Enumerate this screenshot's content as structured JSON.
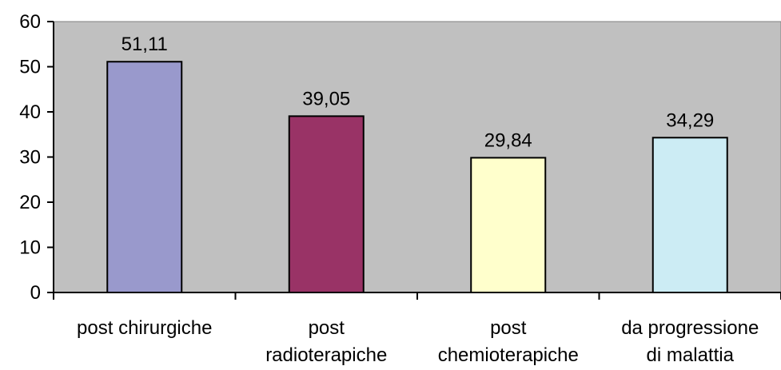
{
  "chart_data": {
    "type": "bar",
    "categories": [
      [
        "post chirurgiche"
      ],
      [
        "post",
        "radioterapiche"
      ],
      [
        "post",
        "chemioterapiche"
      ],
      [
        "da progressione",
        "di malattia"
      ]
    ],
    "values": [
      51.11,
      39.05,
      29.84,
      34.29
    ],
    "value_labels": [
      "51,11",
      "39,05",
      "29,84",
      "34,29"
    ],
    "bar_colors": [
      "#9999cc",
      "#993366",
      "#ffffcc",
      "#ccecf4"
    ],
    "plot_background": "#c0c0c0",
    "ylim": [
      0,
      60
    ],
    "yticks": [
      0,
      10,
      20,
      30,
      40,
      50,
      60
    ],
    "ytick_labels": [
      "0",
      "10",
      "20",
      "30",
      "40",
      "50",
      "60"
    ],
    "grid": false,
    "legend": "none",
    "title": "",
    "xlabel": "",
    "ylabel": ""
  }
}
